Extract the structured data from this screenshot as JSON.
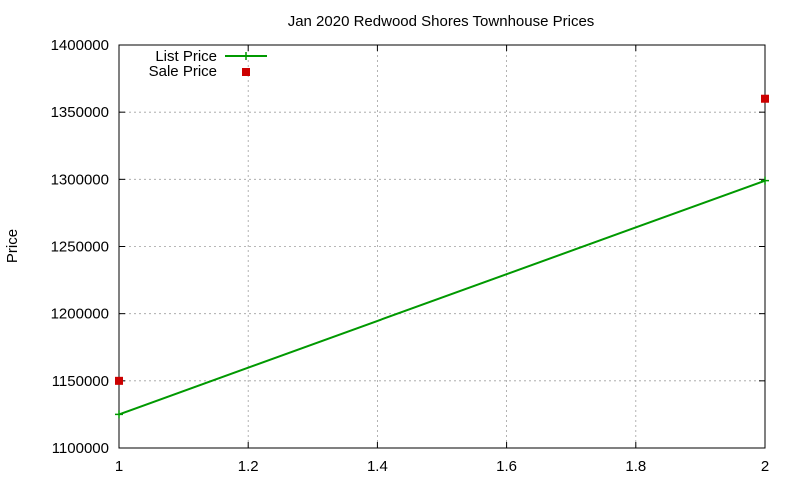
{
  "chart_data": {
    "type": "line",
    "title": "Jan 2020 Redwood Shores Townhouse Prices",
    "xlabel": "",
    "ylabel": "Price",
    "xlim": [
      1,
      2
    ],
    "ylim": [
      1100000,
      1400000
    ],
    "x_ticks": [
      1,
      1.2,
      1.4,
      1.6,
      1.8,
      2
    ],
    "x_tick_labels": [
      "1",
      "1.2",
      "1.4",
      "1.6",
      "1.8",
      "2"
    ],
    "y_ticks": [
      1100000,
      1150000,
      1200000,
      1250000,
      1300000,
      1350000,
      1400000
    ],
    "y_tick_labels": [
      "1100000",
      "1150000",
      "1200000",
      "1250000",
      "1300000",
      "1350000",
      "1400000"
    ],
    "grid": true,
    "legend_position": "top-left",
    "series": [
      {
        "name": "List Price",
        "style": "linespoints",
        "color": "#009900",
        "points": [
          {
            "x": 1,
            "y": 1125000
          },
          {
            "x": 2,
            "y": 1299000
          }
        ]
      },
      {
        "name": "Sale Price",
        "style": "points",
        "color": "#cc0000",
        "points": [
          {
            "x": 1,
            "y": 1150000
          },
          {
            "x": 2,
            "y": 1360000
          }
        ]
      }
    ]
  }
}
